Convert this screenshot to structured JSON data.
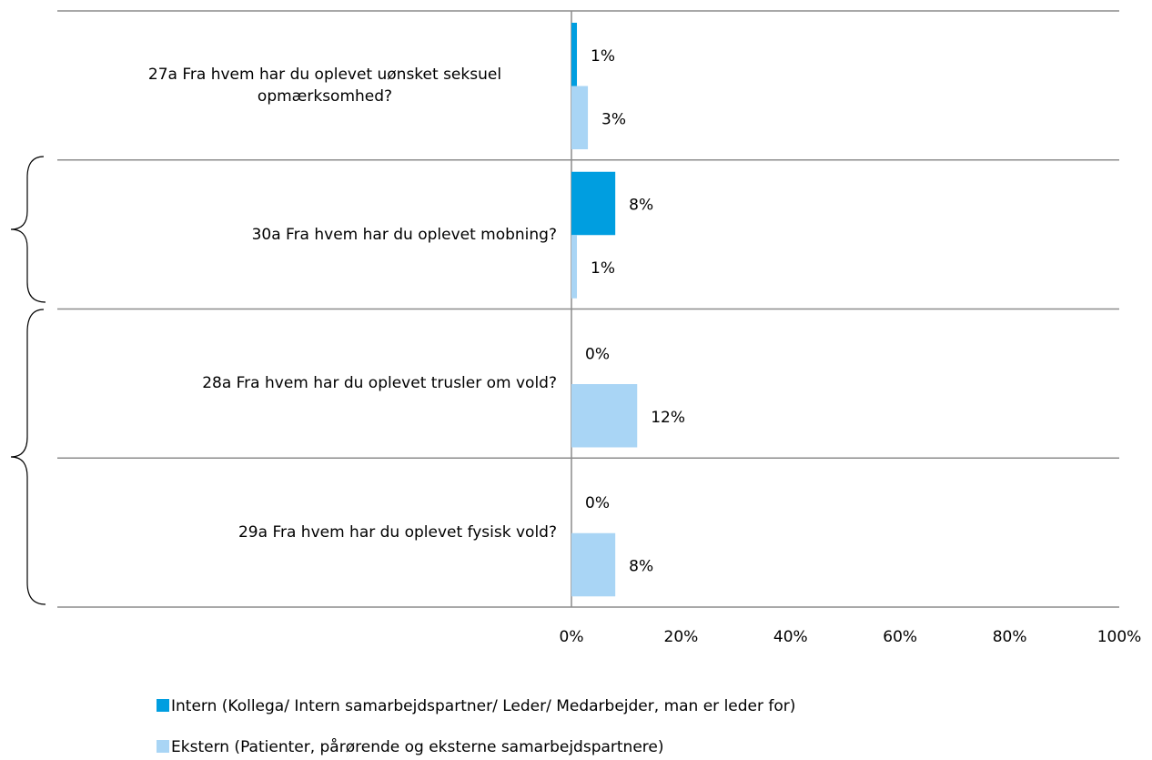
{
  "chart_data": {
    "type": "hbar",
    "categories": [
      "27a Fra hvem har du oplevet uønsket seksuel opmærksomhed?",
      "30a Fra hvem har du oplevet mobning?",
      "28a Fra hvem har du oplevet trusler om vold?",
      "29a Fra hvem har du oplevet fysisk vold?"
    ],
    "series": [
      {
        "name": "Intern (Kollega/ Intern samarbejdspartner/ Leder/ Medarbejder, man er leder for)",
        "color": "#009ee0",
        "values": [
          1,
          8,
          0,
          0
        ],
        "value_labels": [
          "1%",
          "8%",
          "0%",
          "0%"
        ]
      },
      {
        "name": "Ekstern (Patienter, pårørende og eksterne samarbejdspartnere)",
        "color": "#a9d5f5",
        "values": [
          3,
          1,
          12,
          8
        ],
        "value_labels": [
          "3%",
          "1%",
          "12%",
          "8%"
        ]
      }
    ],
    "xlim": [
      0,
      100
    ],
    "xticks": [
      {
        "value": 0,
        "label": "0%"
      },
      {
        "value": 20,
        "label": "20%"
      },
      {
        "value": 40,
        "label": "40%"
      },
      {
        "value": 60,
        "label": "60%"
      },
      {
        "value": 80,
        "label": "80%"
      },
      {
        "value": 100,
        "label": "100%"
      }
    ]
  }
}
